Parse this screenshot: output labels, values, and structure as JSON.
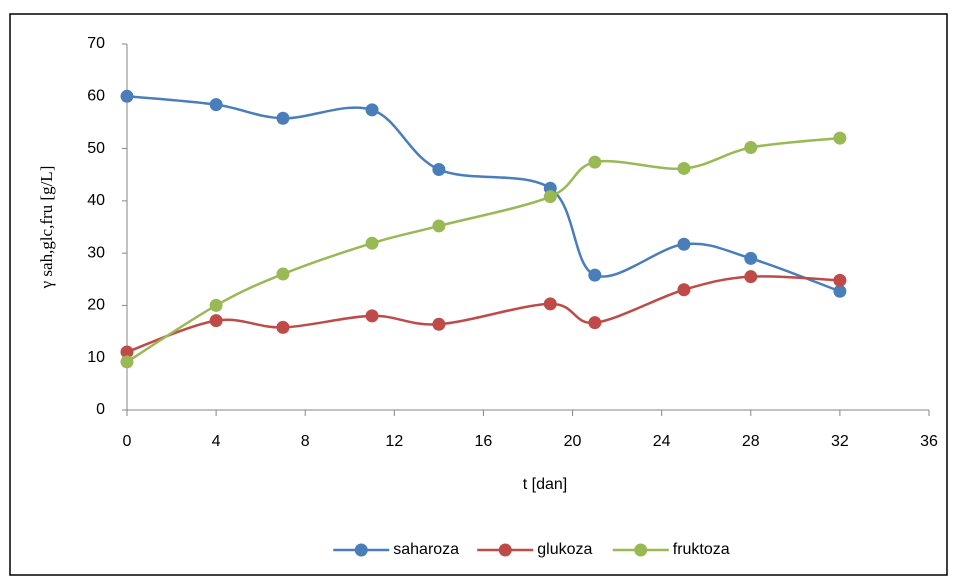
{
  "chart_data": {
    "type": "line",
    "smooth": true,
    "x": [
      0,
      4,
      7,
      11,
      14,
      19,
      21,
      25,
      28,
      32
    ],
    "series": [
      {
        "name": "saharoza",
        "color": "#4a7ebb",
        "values": [
          60,
          58.4,
          55.8,
          57.4,
          46,
          42.4,
          25.8,
          31.7,
          29,
          22.7
        ]
      },
      {
        "name": "glukoza",
        "color": "#be4b48",
        "values": [
          11.1,
          17.1,
          15.8,
          18,
          16.4,
          20.3,
          16.7,
          23,
          25.5,
          24.8
        ]
      },
      {
        "name": "fruktoza",
        "color": "#98b954",
        "values": [
          9.2,
          20,
          26,
          31.9,
          35.2,
          40.8,
          47.4,
          46.2,
          50.2,
          52
        ]
      }
    ],
    "xlabel": "t [dan]",
    "ylabel": "γ sah,glc,fru  [g/L]",
    "xlim": [
      0,
      36
    ],
    "xticks": [
      0,
      4,
      8,
      12,
      16,
      20,
      24,
      28,
      32,
      36
    ],
    "ylim": [
      0,
      70
    ],
    "yticks": [
      0,
      10,
      20,
      30,
      40,
      50,
      60,
      70
    ],
    "grid": false,
    "legend": "bottom"
  }
}
